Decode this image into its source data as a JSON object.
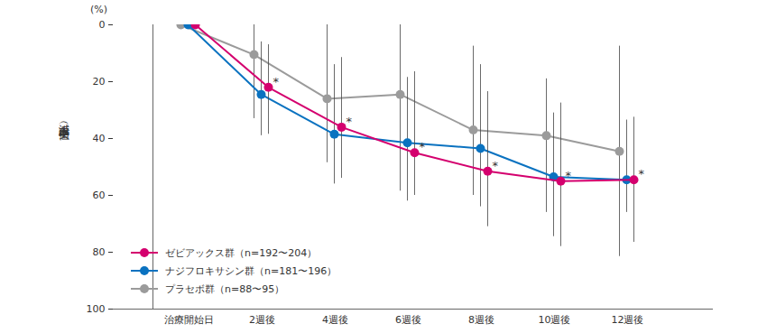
{
  "chart_data": {
    "type": "line",
    "y_label": "減少率（中央値）",
    "y_unit": "(%)",
    "categories": [
      "治療開始日",
      "2週後",
      "4週後",
      "6週後",
      "8週後",
      "10週後",
      "12週後"
    ],
    "ylim": [
      100,
      0
    ],
    "yticks": [
      0,
      20,
      40,
      60,
      80,
      100
    ],
    "grid": false,
    "legend": "lower left",
    "marker": "circle",
    "series": [
      {
        "name": "ゼビアックス群（n=192〜204）",
        "color": "#d4006e",
        "values": [
          0,
          22,
          36,
          45,
          51.5,
          55,
          54.5
        ],
        "error_low": [
          null,
          7,
          11.5,
          16.5,
          23.5,
          27.5,
          32.5
        ],
        "error_high": [
          null,
          38.5,
          54,
          60,
          71,
          78,
          76.5
        ],
        "annotations": [
          null,
          "*",
          "*",
          "*",
          "*",
          "*",
          "*"
        ]
      },
      {
        "name": "ナジフロキサシン群（n=181〜196）",
        "color": "#0a72c0",
        "values": [
          0,
          24.5,
          38.5,
          41.5,
          43.5,
          53.5,
          54.5
        ],
        "error_low": [
          null,
          6,
          14,
          18.5,
          14,
          31,
          33.5
        ],
        "error_high": [
          null,
          39,
          56,
          62,
          64,
          74.5,
          66
        ]
      },
      {
        "name": "プラセボ群（n=88〜95）",
        "color": "#9b9b9b",
        "values": [
          0,
          10.5,
          26,
          24.5,
          37,
          39,
          44.5
        ],
        "error_low": [
          null,
          0,
          0,
          0,
          7.5,
          19,
          7.5
        ],
        "error_high": [
          null,
          33,
          48.5,
          58.5,
          60,
          66,
          81.5
        ]
      }
    ]
  }
}
